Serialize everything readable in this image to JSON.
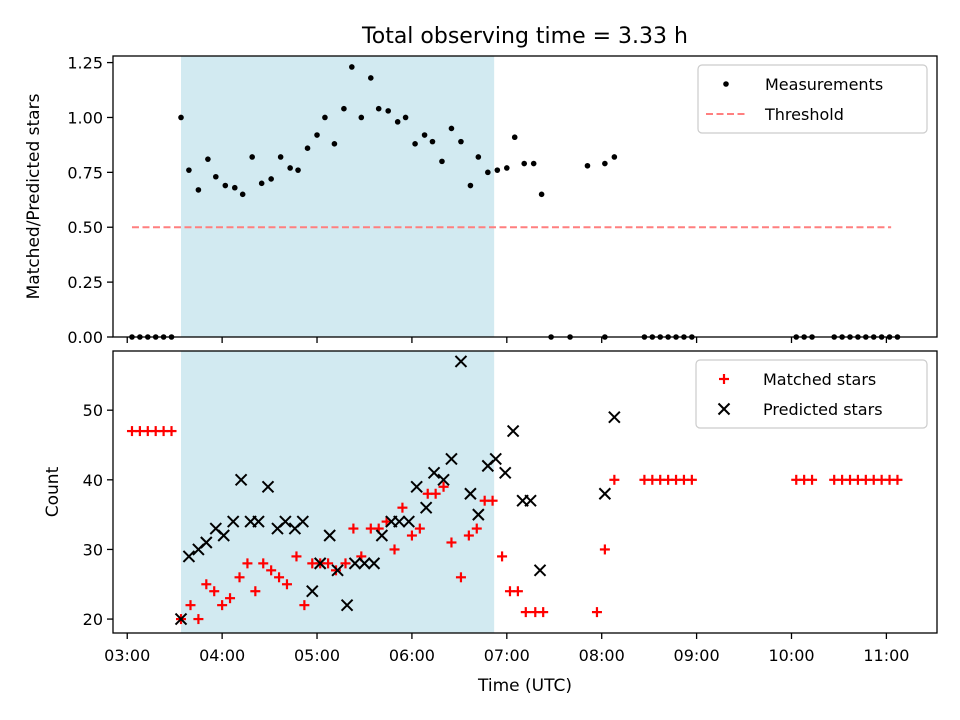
{
  "figure_title": "Total observing time = 3.33 h",
  "chart_data": [
    {
      "type": "scatter",
      "ylabel": "Matched/Predicted stars",
      "ylim": [
        0,
        1.28
      ],
      "yticks": [
        0,
        0.25,
        0.5,
        0.75,
        1.0,
        1.25
      ],
      "ytick_labels": [
        "0.00",
        "0.25",
        "0.50",
        "0.75",
        "1.00",
        "1.25"
      ],
      "xlim": [
        "02:51",
        "11:32"
      ],
      "shaded_interval": [
        "03:34",
        "06:52"
      ],
      "shade_color": "#add8e6",
      "legend": {
        "placement": "top-right",
        "entries": [
          {
            "label": "Measurements",
            "marker": "dot",
            "color": "#000000"
          },
          {
            "label": "Threshold",
            "marker": "dashed-line",
            "color": "#ff7f7f"
          }
        ]
      },
      "threshold": {
        "name": "Threshold",
        "y": 0.5,
        "x": [
          "03:03",
          "11:03"
        ],
        "color": "#ff7f7f"
      },
      "series": [
        {
          "name": "Measurements",
          "color": "#000000",
          "points": [
            [
              "03:03",
              0
            ],
            [
              "03:08",
              0
            ],
            [
              "03:13",
              0
            ],
            [
              "03:18",
              0
            ],
            [
              "03:23",
              0
            ],
            [
              "03:28",
              0
            ],
            [
              "03:34",
              1.0
            ],
            [
              "03:39",
              0.76
            ],
            [
              "03:45",
              0.67
            ],
            [
              "03:51",
              0.81
            ],
            [
              "03:56",
              0.73
            ],
            [
              "04:02",
              0.69
            ],
            [
              "04:08",
              0.68
            ],
            [
              "04:13",
              0.65
            ],
            [
              "04:19",
              0.82
            ],
            [
              "04:25",
              0.7
            ],
            [
              "04:31",
              0.72
            ],
            [
              "04:37",
              0.82
            ],
            [
              "04:43",
              0.77
            ],
            [
              "04:48",
              0.76
            ],
            [
              "04:54",
              0.86
            ],
            [
              "05:00",
              0.92
            ],
            [
              "05:05",
              1.0
            ],
            [
              "05:11",
              0.88
            ],
            [
              "05:17",
              1.04
            ],
            [
              "05:22",
              1.23
            ],
            [
              "05:28",
              1.0
            ],
            [
              "05:34",
              1.18
            ],
            [
              "05:39",
              1.04
            ],
            [
              "05:45",
              1.03
            ],
            [
              "05:51",
              0.98
            ],
            [
              "05:56",
              1.0
            ],
            [
              "06:02",
              0.88
            ],
            [
              "06:08",
              0.92
            ],
            [
              "06:13",
              0.89
            ],
            [
              "06:19",
              0.8
            ],
            [
              "06:25",
              0.95
            ],
            [
              "06:31",
              0.89
            ],
            [
              "06:37",
              0.69
            ],
            [
              "06:42",
              0.82
            ],
            [
              "06:48",
              0.75
            ],
            [
              "06:54",
              0.76
            ],
            [
              "07:00",
              0.77
            ],
            [
              "07:05",
              0.91
            ],
            [
              "07:11",
              0.79
            ],
            [
              "07:17",
              0.79
            ],
            [
              "07:22",
              0.65
            ],
            [
              "07:28",
              0
            ],
            [
              "07:40",
              0
            ],
            [
              "07:51",
              0.78
            ],
            [
              "08:02",
              0
            ],
            [
              "08:02",
              0.79
            ],
            [
              "08:08",
              0.82
            ],
            [
              "08:27",
              0
            ],
            [
              "08:32",
              0
            ],
            [
              "08:37",
              0
            ],
            [
              "08:42",
              0
            ],
            [
              "08:47",
              0
            ],
            [
              "08:52",
              0
            ],
            [
              "08:57",
              0
            ],
            [
              "10:03",
              0
            ],
            [
              "10:08",
              0
            ],
            [
              "10:13",
              0
            ],
            [
              "10:27",
              0
            ],
            [
              "10:32",
              0
            ],
            [
              "10:37",
              0
            ],
            [
              "10:42",
              0
            ],
            [
              "10:47",
              0
            ],
            [
              "10:52",
              0
            ],
            [
              "10:57",
              0
            ],
            [
              "11:02",
              0
            ],
            [
              "11:07",
              0
            ]
          ]
        }
      ]
    },
    {
      "type": "scatter",
      "xlabel": "Time (UTC)",
      "ylabel": "Count",
      "ylim": [
        18,
        58.5
      ],
      "yticks": [
        20,
        30,
        40,
        50
      ],
      "ytick_labels": [
        "20",
        "30",
        "40",
        "50"
      ],
      "xlim": [
        "02:51",
        "11:32"
      ],
      "xticks": [
        "03:00",
        "04:00",
        "05:00",
        "06:00",
        "07:00",
        "08:00",
        "09:00",
        "10:00",
        "11:00"
      ],
      "xtick_labels": [
        "03:00",
        "04:00",
        "05:00",
        "06:00",
        "07:00",
        "08:00",
        "09:00",
        "10:00",
        "11:00"
      ],
      "shaded_interval": [
        "03:34",
        "06:52"
      ],
      "shade_color": "#add8e6",
      "legend": {
        "placement": "top-right",
        "entries": [
          {
            "label": "Matched stars",
            "marker": "plus",
            "color": "#ff0000"
          },
          {
            "label": "Predicted stars",
            "marker": "x",
            "color": "#000000"
          }
        ]
      },
      "series": [
        {
          "name": "Matched stars",
          "marker": "plus",
          "color": "#ff0000",
          "points": [
            [
              "03:03",
              47
            ],
            [
              "03:08",
              47
            ],
            [
              "03:13",
              47
            ],
            [
              "03:18",
              47
            ],
            [
              "03:23",
              47
            ],
            [
              "03:28",
              47
            ],
            [
              "03:34",
              20
            ],
            [
              "03:40",
              22
            ],
            [
              "03:45",
              20
            ],
            [
              "03:50",
              25
            ],
            [
              "03:55",
              24
            ],
            [
              "04:00",
              22
            ],
            [
              "04:05",
              23
            ],
            [
              "04:11",
              26
            ],
            [
              "04:16",
              28
            ],
            [
              "04:21",
              24
            ],
            [
              "04:26",
              28
            ],
            [
              "04:31",
              27
            ],
            [
              "04:36",
              26
            ],
            [
              "04:41",
              25
            ],
            [
              "04:47",
              29
            ],
            [
              "04:52",
              22
            ],
            [
              "04:57",
              28
            ],
            [
              "05:02",
              28
            ],
            [
              "05:07",
              28
            ],
            [
              "05:12",
              27
            ],
            [
              "05:18",
              28
            ],
            [
              "05:23",
              33
            ],
            [
              "05:28",
              29
            ],
            [
              "05:34",
              33
            ],
            [
              "05:39",
              33
            ],
            [
              "05:44",
              34
            ],
            [
              "05:49",
              30
            ],
            [
              "05:54",
              36
            ],
            [
              "06:00",
              32
            ],
            [
              "06:05",
              33
            ],
            [
              "06:10",
              38
            ],
            [
              "06:15",
              38
            ],
            [
              "06:20",
              39
            ],
            [
              "06:25",
              31
            ],
            [
              "06:31",
              26
            ],
            [
              "06:36",
              32
            ],
            [
              "06:41",
              33
            ],
            [
              "06:46",
              37
            ],
            [
              "06:51",
              37
            ],
            [
              "06:57",
              29
            ],
            [
              "07:02",
              24
            ],
            [
              "07:07",
              24
            ],
            [
              "07:12",
              21
            ],
            [
              "07:18",
              21
            ],
            [
              "07:23",
              21
            ],
            [
              "07:57",
              21
            ],
            [
              "08:02",
              30
            ],
            [
              "08:08",
              40
            ],
            [
              "08:27",
              40
            ],
            [
              "08:32",
              40
            ],
            [
              "08:37",
              40
            ],
            [
              "08:42",
              40
            ],
            [
              "08:47",
              40
            ],
            [
              "08:52",
              40
            ],
            [
              "08:57",
              40
            ],
            [
              "10:03",
              40
            ],
            [
              "10:08",
              40
            ],
            [
              "10:13",
              40
            ],
            [
              "10:27",
              40
            ],
            [
              "10:32",
              40
            ],
            [
              "10:37",
              40
            ],
            [
              "10:42",
              40
            ],
            [
              "10:47",
              40
            ],
            [
              "10:52",
              40
            ],
            [
              "10:57",
              40
            ],
            [
              "11:02",
              40
            ],
            [
              "11:07",
              40
            ]
          ]
        },
        {
          "name": "Predicted stars",
          "marker": "x",
          "color": "#000000",
          "points": [
            [
              "03:34",
              20
            ],
            [
              "03:39",
              29
            ],
            [
              "03:45",
              30
            ],
            [
              "03:50",
              31
            ],
            [
              "03:56",
              33
            ],
            [
              "04:01",
              32
            ],
            [
              "04:07",
              34
            ],
            [
              "04:12",
              40
            ],
            [
              "04:18",
              34
            ],
            [
              "04:23",
              34
            ],
            [
              "04:29",
              39
            ],
            [
              "04:35",
              33
            ],
            [
              "04:40",
              34
            ],
            [
              "04:46",
              33
            ],
            [
              "04:51",
              34
            ],
            [
              "04:57",
              24
            ],
            [
              "05:02",
              28
            ],
            [
              "05:08",
              32
            ],
            [
              "05:13",
              27
            ],
            [
              "05:19",
              22
            ],
            [
              "05:24",
              28
            ],
            [
              "05:30",
              28
            ],
            [
              "05:36",
              28
            ],
            [
              "05:41",
              32
            ],
            [
              "05:47",
              34
            ],
            [
              "05:52",
              34
            ],
            [
              "05:58",
              34
            ],
            [
              "06:03",
              39
            ],
            [
              "06:09",
              36
            ],
            [
              "06:14",
              41
            ],
            [
              "06:20",
              40
            ],
            [
              "06:25",
              43
            ],
            [
              "06:31",
              57
            ],
            [
              "06:37",
              38
            ],
            [
              "06:42",
              35
            ],
            [
              "06:48",
              42
            ],
            [
              "06:53",
              43
            ],
            [
              "06:59",
              41
            ],
            [
              "07:04",
              47
            ],
            [
              "07:10",
              37
            ],
            [
              "07:15",
              37
            ],
            [
              "07:21",
              27
            ],
            [
              "08:02",
              38
            ],
            [
              "08:08",
              49
            ]
          ]
        }
      ]
    }
  ]
}
